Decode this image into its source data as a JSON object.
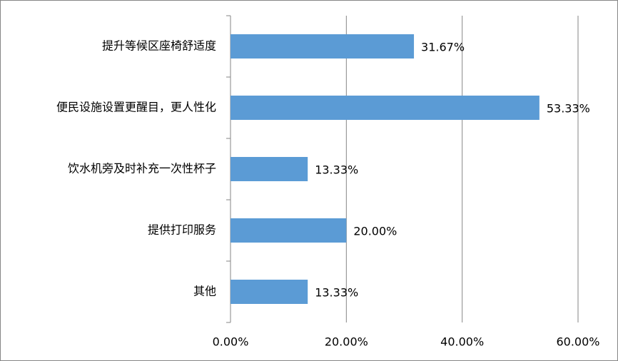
{
  "chart_data": {
    "type": "hbar",
    "categories": [
      "提升等候区座椅舒适度",
      "便民设施设置更醒目，更人性化",
      "饮水机旁及时补充一次性杯子",
      "提供打印服务",
      "其他"
    ],
    "values": [
      31.67,
      53.33,
      13.33,
      20.0,
      13.33
    ],
    "value_labels": [
      "31.67%",
      "53.33%",
      "13.33%",
      "20.00%",
      "13.33%"
    ],
    "color": "#5b9bd5",
    "xlim": [
      0,
      60
    ],
    "xticks": [
      {
        "value": 0,
        "label": "0.00%"
      },
      {
        "value": 20,
        "label": "20.00%"
      },
      {
        "value": 40,
        "label": "40.00%"
      },
      {
        "value": 60,
        "label": "60.00%"
      }
    ],
    "grid": true
  }
}
